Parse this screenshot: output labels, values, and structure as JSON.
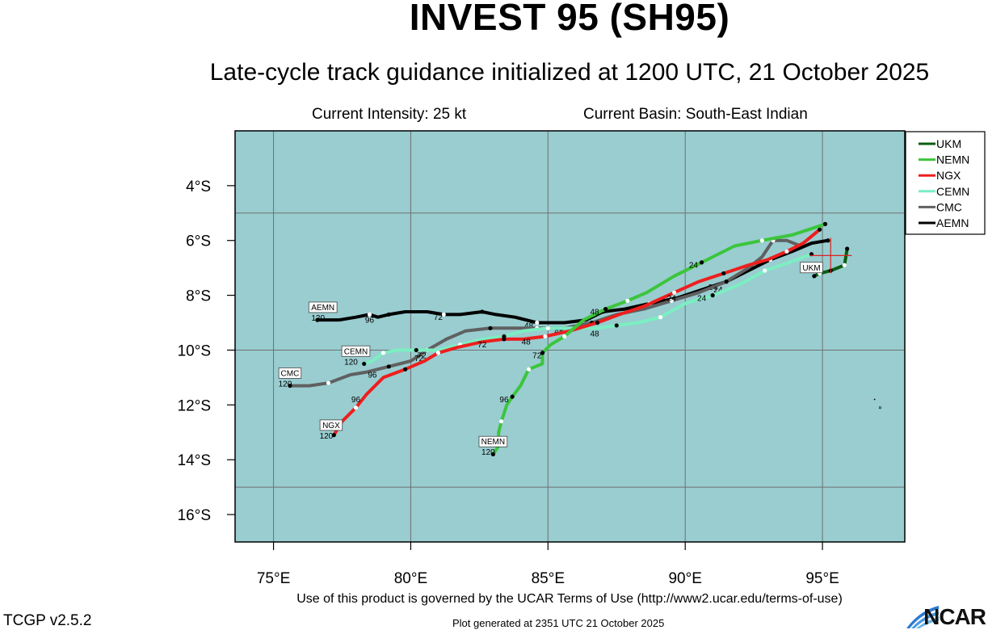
{
  "header": {
    "title": "INVEST 95 (SH95)",
    "subtitle": "Late-cycle track guidance initialized at 1200 UTC, 21 October 2025",
    "intensity": "Current Intensity: 25 kt",
    "basin": "Current Basin: South-East Indian"
  },
  "footer": {
    "terms": "Use of this product is governed by the UCAR Terms of Use (http://www2.ucar.edu/terms-of-use)",
    "version": "TCGP v2.5.2",
    "generated": "Plot generated at 2351 UTC   21 October 2025",
    "logo_text": "NCAR"
  },
  "colors": {
    "ocean": "#99cdd0",
    "grid": "#707070",
    "UKM": "#0b5d10",
    "NEMN": "#3cc53c",
    "NGX": "#ee1e1e",
    "CEMN": "#7ceec2",
    "CMC": "#606060",
    "AEMN": "#000000",
    "current_position_marker": "#dd2222"
  },
  "chart_data": {
    "type": "line",
    "x_axis": {
      "ticks": [
        75,
        80,
        85,
        90,
        95
      ],
      "tick_labels": [
        "75°E",
        "80°E",
        "85°E",
        "90°E",
        "95°E"
      ],
      "range": [
        73.6,
        98.0
      ]
    },
    "y_axis": {
      "ticks": [
        -4,
        -6,
        -8,
        -10,
        -12,
        -14,
        -16
      ],
      "tick_labels": [
        "4°S",
        "6°S",
        "8°S",
        "10°S",
        "12°S",
        "14°S",
        "16°S"
      ],
      "range": [
        -17.0,
        -2.0
      ]
    },
    "grid_lines": {
      "lon": [
        75,
        80,
        85,
        90,
        95
      ],
      "lat": [
        -5,
        -10,
        -15
      ]
    },
    "legend_position": "right-top",
    "current_position": {
      "lon": 95.3,
      "lat": -6.55
    },
    "series": [
      {
        "name": "UKM",
        "points": [
          [
            95.9,
            -6.3
          ],
          [
            95.8,
            -6.9
          ],
          [
            95.3,
            -7.1
          ],
          [
            94.9,
            -7.2
          ],
          [
            94.7,
            -7.3
          ]
        ],
        "marker_hours": [
          0,
          12,
          24,
          36,
          48
        ],
        "label": "UKM",
        "label_lon": 94.6,
        "label_lat": -7.15,
        "end_hour": ""
      },
      {
        "name": "NEMN",
        "points": [
          [
            95.1,
            -5.4
          ],
          [
            94.5,
            -5.6
          ],
          [
            93.9,
            -5.8
          ],
          [
            92.8,
            -6.0
          ],
          [
            91.8,
            -6.2
          ],
          [
            90.6,
            -6.8
          ],
          [
            89.6,
            -7.3
          ],
          [
            88.6,
            -7.9
          ],
          [
            87.9,
            -8.2
          ],
          [
            87.1,
            -8.5
          ],
          [
            86.3,
            -8.9
          ],
          [
            85.6,
            -9.5
          ],
          [
            85.1,
            -9.8
          ],
          [
            84.8,
            -10.1
          ],
          [
            84.8,
            -10.5
          ],
          [
            84.3,
            -10.7
          ],
          [
            84.0,
            -11.3
          ],
          [
            83.7,
            -11.7
          ],
          [
            83.5,
            -12.0
          ],
          [
            83.3,
            -12.6
          ],
          [
            83.2,
            -13.0
          ],
          [
            83.2,
            -13.5
          ],
          [
            83.0,
            -13.8
          ]
        ],
        "marker_hours": [
          0,
          12,
          24,
          36,
          48,
          60,
          72,
          84,
          96,
          108,
          120
        ],
        "marker_indices": [
          0,
          3,
          5,
          8,
          9,
          11,
          13,
          15,
          17,
          19,
          22
        ],
        "label": "NEMN",
        "label_lon": 83.0,
        "label_lat": -13.5,
        "end_hour": "120",
        "hour_labels": [
          [
            "24",
            90.3,
            -7.0
          ],
          [
            "48",
            86.7,
            -8.7
          ],
          [
            "72",
            84.6,
            -10.3
          ],
          [
            "96",
            83.4,
            -11.9
          ]
        ]
      },
      {
        "name": "NGX",
        "points": [
          [
            94.9,
            -5.6
          ],
          [
            94.3,
            -6.1
          ],
          [
            93.7,
            -6.4
          ],
          [
            93.0,
            -6.7
          ],
          [
            92.3,
            -6.9
          ],
          [
            91.4,
            -7.2
          ],
          [
            90.5,
            -7.5
          ],
          [
            89.6,
            -7.9
          ],
          [
            88.5,
            -8.4
          ],
          [
            87.6,
            -8.7
          ],
          [
            86.8,
            -9.0
          ],
          [
            85.8,
            -9.3
          ],
          [
            84.9,
            -9.5
          ],
          [
            84.1,
            -9.6
          ],
          [
            83.4,
            -9.6
          ],
          [
            82.6,
            -9.7
          ],
          [
            81.7,
            -9.9
          ],
          [
            81.0,
            -10.1
          ],
          [
            80.5,
            -10.4
          ],
          [
            79.8,
            -10.7
          ],
          [
            79.0,
            -11.0
          ],
          [
            78.4,
            -11.6
          ],
          [
            78.0,
            -12.1
          ],
          [
            77.5,
            -12.6
          ],
          [
            77.2,
            -13.1
          ]
        ],
        "marker_hours": [
          0,
          12,
          24,
          36,
          48,
          60,
          72,
          84,
          96,
          108,
          120
        ],
        "label": "NGX",
        "label_lon": 77.1,
        "label_lat": -12.9,
        "end_hour": "120",
        "hour_labels": [
          [
            "24",
            89.5,
            -8.2
          ],
          [
            "48",
            84.2,
            -9.8
          ],
          [
            "72",
            82.6,
            -9.9
          ],
          [
            "96",
            78.0,
            -11.9
          ]
        ]
      },
      {
        "name": "CEMN",
        "points": [
          [
            94.6,
            -6.5
          ],
          [
            93.8,
            -6.8
          ],
          [
            92.9,
            -7.1
          ],
          [
            92.0,
            -7.6
          ],
          [
            91.0,
            -8.0
          ],
          [
            90.0,
            -8.3
          ],
          [
            89.1,
            -8.8
          ],
          [
            88.3,
            -9.0
          ],
          [
            87.5,
            -9.1
          ],
          [
            86.8,
            -9.2
          ],
          [
            86.0,
            -9.2
          ],
          [
            85.0,
            -9.2
          ],
          [
            84.1,
            -9.3
          ],
          [
            83.4,
            -9.5
          ],
          [
            82.6,
            -9.6
          ],
          [
            81.8,
            -9.8
          ],
          [
            81.0,
            -10.0
          ],
          [
            80.2,
            -10.0
          ],
          [
            79.5,
            -10.0
          ],
          [
            79.0,
            -10.1
          ],
          [
            78.6,
            -10.4
          ],
          [
            78.3,
            -10.5
          ]
        ],
        "marker_hours": [
          0,
          12,
          24,
          36,
          48,
          60,
          72,
          84,
          96,
          108,
          120
        ],
        "label": "CEMN",
        "label_lon": 78.0,
        "label_lat": -10.2,
        "end_hour": "120",
        "hour_labels": [
          [
            "24",
            90.6,
            -8.2
          ],
          [
            "48",
            86.7,
            -9.5
          ],
          [
            "72",
            80.4,
            -10.3
          ]
        ]
      },
      {
        "name": "CMC",
        "points": [
          [
            94.2,
            -6.2
          ],
          [
            93.7,
            -6.0
          ],
          [
            93.2,
            -6.0
          ],
          [
            92.8,
            -6.6
          ],
          [
            92.3,
            -7.0
          ],
          [
            91.5,
            -7.5
          ],
          [
            90.5,
            -7.9
          ],
          [
            89.5,
            -8.2
          ],
          [
            88.5,
            -8.5
          ],
          [
            87.5,
            -8.7
          ],
          [
            86.6,
            -9.0
          ],
          [
            85.6,
            -9.2
          ],
          [
            84.6,
            -9.2
          ],
          [
            83.8,
            -9.2
          ],
          [
            82.9,
            -9.2
          ],
          [
            82.0,
            -9.3
          ],
          [
            81.3,
            -9.6
          ],
          [
            80.6,
            -10.0
          ],
          [
            80.0,
            -10.4
          ],
          [
            79.2,
            -10.6
          ],
          [
            78.4,
            -10.8
          ],
          [
            77.8,
            -10.9
          ],
          [
            77.0,
            -11.2
          ],
          [
            76.3,
            -11.3
          ],
          [
            75.6,
            -11.3
          ]
        ],
        "marker_hours": [
          0,
          12,
          24,
          36,
          48,
          60,
          72,
          84,
          96,
          108,
          120
        ],
        "label": "CMC",
        "label_lon": 75.6,
        "label_lat": -11.0,
        "end_hour": "120",
        "hour_labels": [
          [
            "24",
            91.2,
            -7.9
          ],
          [
            "48",
            85.4,
            -9.4
          ],
          [
            "72",
            80.3,
            -10.4
          ],
          [
            "96",
            78.6,
            -11.0
          ]
        ]
      },
      {
        "name": "AEMN",
        "points": [
          [
            95.2,
            -6.0
          ],
          [
            94.6,
            -6.1
          ],
          [
            93.9,
            -6.4
          ],
          [
            93.1,
            -6.7
          ],
          [
            92.3,
            -7.1
          ],
          [
            91.5,
            -7.5
          ],
          [
            90.6,
            -7.8
          ],
          [
            89.7,
            -8.1
          ],
          [
            88.7,
            -8.3
          ],
          [
            87.8,
            -8.5
          ],
          [
            87.0,
            -8.6
          ],
          [
            86.4,
            -8.9
          ],
          [
            85.6,
            -9.0
          ],
          [
            84.6,
            -9.0
          ],
          [
            83.8,
            -8.8
          ],
          [
            83.1,
            -8.7
          ],
          [
            82.6,
            -8.6
          ],
          [
            81.8,
            -8.7
          ],
          [
            81.2,
            -8.7
          ],
          [
            80.6,
            -8.6
          ],
          [
            79.8,
            -8.6
          ],
          [
            79.2,
            -8.7
          ],
          [
            78.8,
            -8.8
          ],
          [
            78.5,
            -8.7
          ],
          [
            78.0,
            -8.8
          ],
          [
            77.4,
            -8.9
          ],
          [
            76.6,
            -8.9
          ]
        ],
        "marker_hours": [
          0,
          12,
          24,
          36,
          48,
          60,
          72,
          84,
          96,
          108,
          120
        ],
        "label": "AEMN",
        "label_lon": 76.8,
        "label_lat": -8.6,
        "end_hour": "120",
        "hour_labels": [
          [
            "24",
            91.0,
            -7.8
          ],
          [
            "48",
            84.3,
            -9.2
          ],
          [
            "72",
            81.0,
            -8.9
          ],
          [
            "96",
            78.5,
            -9.0
          ]
        ]
      }
    ]
  }
}
